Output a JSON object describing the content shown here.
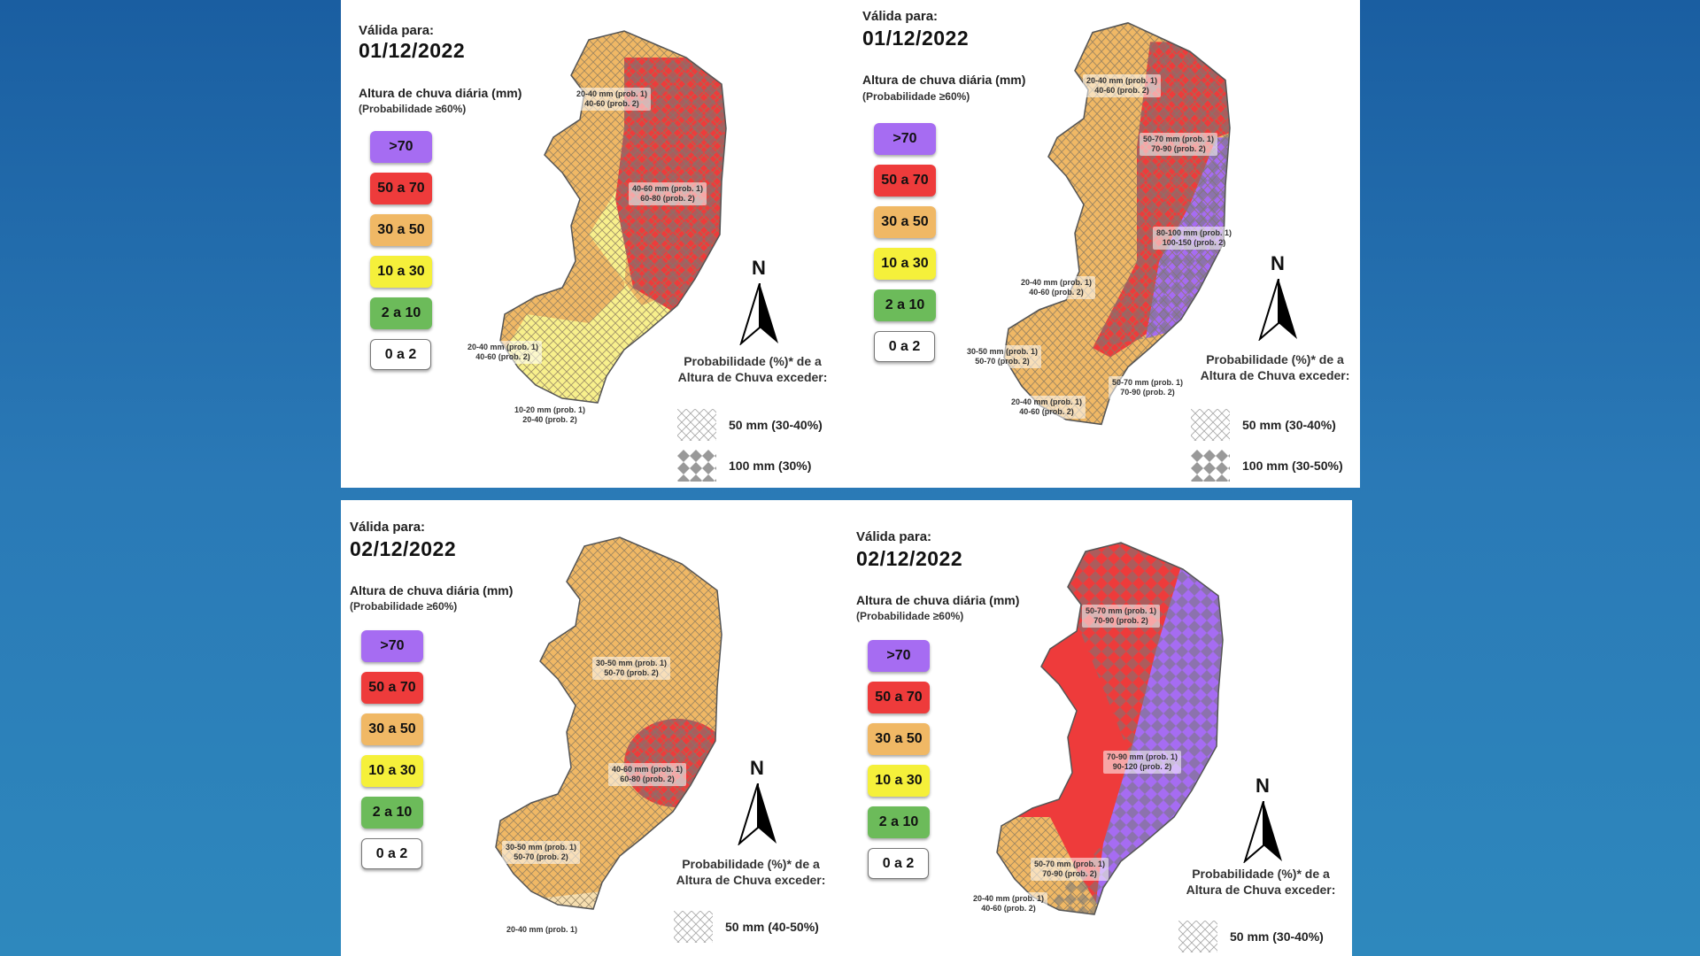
{
  "legend_colors": {
    "gt70": "#a66cf2",
    "50a70": "#ee3b3b",
    "30a50": "#f0b865",
    "10a30": "#f5f03a",
    "2a10": "#6cbb5a",
    "0a2": "#ffffff"
  },
  "panels": [
    {
      "valid_label": "Válida para:",
      "date": "01/12/2022",
      "legend_title": "Altura de chuva diária (mm)",
      "legend_subtitle": "(Probabilidade ≥60%)",
      "legend": [
        ">70",
        "50 a 70",
        "30 a 50",
        "10 a 30",
        "2 a 10",
        "0 a 2"
      ],
      "north": "N",
      "prob_title": "Probabilidade (%)* de a Altura de Chuva exceder:",
      "hatch_1": "50 mm (30-40%)",
      "hatch_2": "100 mm (30%)",
      "labels": [
        {
          "l1": "20-40 mm (prob. 1)",
          "l2": "40-60 (prob. 2)"
        },
        {
          "l1": "40-60 mm (prob. 1)",
          "l2": "60-80 (prob. 2)"
        },
        {
          "l1": "20-40 mm (prob. 1)",
          "l2": "40-60 (prob. 2)"
        },
        {
          "l1": "10-20 mm (prob. 1)",
          "l2": "20-40 (prob. 2)"
        }
      ]
    },
    {
      "valid_label": "Válida para:",
      "date": "01/12/2022",
      "legend_title": "Altura de chuva diária (mm)",
      "legend_subtitle": "(Probabilidade ≥60%)",
      "legend": [
        ">70",
        "50 a 70",
        "30 a 50",
        "10 a 30",
        "2 a 10",
        "0 a 2"
      ],
      "north": "N",
      "prob_title": "Probabilidade (%)* de a Altura de Chuva exceder:",
      "hatch_1": "50 mm (30-40%)",
      "hatch_2": "100 mm (30-50%)",
      "labels": [
        {
          "l1": "20-40 mm (prob. 1)",
          "l2": "40-60 (prob. 2)"
        },
        {
          "l1": "50-70 mm (prob. 1)",
          "l2": "70-90 (prob. 2)"
        },
        {
          "l1": "80-100 mm (prob. 1)",
          "l2": "100-150 (prob. 2)"
        },
        {
          "l1": "20-40 mm (prob. 1)",
          "l2": "40-60 (prob. 2)"
        },
        {
          "l1": "30-50 mm (prob. 1)",
          "l2": "50-70 (prob. 2)"
        },
        {
          "l1": "50-70 mm (prob. 1)",
          "l2": "70-90 (prob. 2)"
        },
        {
          "l1": "20-40 mm (prob. 1)",
          "l2": "40-60 (prob. 2)"
        }
      ]
    },
    {
      "valid_label": "Válida para:",
      "date": "02/12/2022",
      "legend_title": "Altura de chuva diária (mm)",
      "legend_subtitle": "(Probabilidade ≥60%)",
      "legend": [
        ">70",
        "50 a 70",
        "30 a 50",
        "10 a 30",
        "2 a 10",
        "0 a 2"
      ],
      "north": "N",
      "prob_title": "Probabilidade (%)* de a Altura de Chuva exceder:",
      "hatch_1": "50 mm (40-50%)",
      "hatch_2": "",
      "labels": [
        {
          "l1": "30-50 mm (prob. 1)",
          "l2": "50-70 (prob. 2)"
        },
        {
          "l1": "40-60 mm (prob. 1)",
          "l2": "60-80 (prob. 2)"
        },
        {
          "l1": "30-50 mm (prob. 1)",
          "l2": "50-70 (prob. 2)"
        },
        {
          "l1": "20-40 mm (prob. 1)",
          "l2": ""
        }
      ]
    },
    {
      "valid_label": "Válida para:",
      "date": "02/12/2022",
      "legend_title": "Altura de chuva diária (mm)",
      "legend_subtitle": "(Probabilidade ≥60%)",
      "legend": [
        ">70",
        "50 a 70",
        "30 a 50",
        "10 a 30",
        "2 a 10",
        "0 a 2"
      ],
      "north": "N",
      "prob_title": "Probabilidade (%)* de a Altura de Chuva exceder:",
      "hatch_1": "50 mm (30-40%)",
      "hatch_2": "",
      "labels": [
        {
          "l1": "50-70 mm (prob. 1)",
          "l2": "70-90 (prob. 2)"
        },
        {
          "l1": "70-90 mm (prob. 1)",
          "l2": "90-120 (prob. 2)"
        },
        {
          "l1": "50-70 mm (prob. 1)",
          "l2": "70-90 (prob. 2)"
        },
        {
          "l1": "20-40 mm (prob. 1)",
          "l2": "40-60 (prob. 2)"
        }
      ]
    }
  ]
}
